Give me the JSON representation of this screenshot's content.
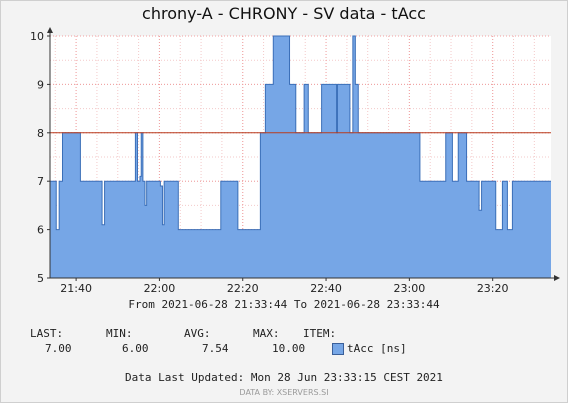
{
  "title": "chrony-A - CHRONY - SV data - tAcc",
  "time_range": "From 2021-06-28 21:33:44 To 2021-06-28 23:33:44",
  "stats": {
    "headers": [
      "LAST:",
      "MIN:",
      "AVG:",
      "MAX:",
      "ITEM:"
    ],
    "last": "7.00",
    "min": "6.00",
    "avg": "7.54",
    "max": "10.00",
    "item": "tAcc [ns]"
  },
  "updated": "Data Last Updated: Mon 28 Jun 23:33:15 CEST 2021",
  "credit": "DATA BY: XSERVERS.SI",
  "colors": {
    "fill": "#76a6e6",
    "line": "#3b6fb8",
    "threshold": "#b83b1e",
    "grid": "#f0a0a0"
  },
  "chart_data": {
    "type": "area",
    "title": "chrony-A - CHRONY - SV data - tAcc",
    "xlabel": "",
    "ylabel": "",
    "ylim": [
      5,
      10
    ],
    "xlim": [
      "21:33",
      "23:34"
    ],
    "x_ticks": [
      "21:40",
      "22:00",
      "22:20",
      "22:40",
      "23:00",
      "23:20"
    ],
    "y_ticks": [
      5,
      6,
      7,
      8,
      9,
      10
    ],
    "threshold": 8,
    "grid": true,
    "series": [
      {
        "name": "tAcc [ns]",
        "x_minutes": [
          0,
          1.5,
          2.2,
          3.0,
          6.5,
          7.3,
          12.0,
          12.5,
          13.1,
          20.0,
          20.5,
          21.0,
          21.6,
          21.9,
          22.3,
          22.8,
          23.2,
          26.5,
          27.0,
          27.4,
          30.0,
          30.8,
          34.0,
          40.0,
          40.6,
          41.0,
          44.5,
          45.1,
          50.0,
          50.5,
          51.3,
          51.7,
          53.6,
          57.5,
          58.0,
          59.0,
          61.0,
          62.0,
          64.4,
          65.2,
          65.8,
          66.2,
          66.8,
          68.8,
          69.0,
          69.5,
          70.0,
          72.0,
          72.7,
          73.3,
          74.0,
          79.0,
          80.0,
          81.0,
          83.0,
          84.5,
          86.0,
          88.0,
          88.8,
          89.5,
          90.0,
          95.0,
          96.0,
          96.6,
          98.0,
          100.0,
          101.3,
          102.1,
          103.0,
          103.6,
          104.3,
          104.7,
          105.4,
          106.1,
          107.0,
          108.6,
          109.3,
          109.8,
          111.0,
          112.5,
          113.0,
          113.5,
          114.5,
          117.0
        ],
        "y_values": [
          7,
          6,
          7,
          8,
          8,
          7,
          7,
          6.1,
          7,
          7,
          8,
          7,
          7.1,
          8,
          7,
          6.5,
          7,
          6.9,
          6.1,
          7,
          7,
          6,
          6,
          6,
          6,
          7,
          7,
          6,
          6,
          8,
          8,
          9,
          10,
          9,
          9,
          8,
          9,
          8,
          8,
          9,
          9,
          9,
          9,
          8,
          9,
          9,
          9,
          8,
          10,
          9,
          8,
          8,
          8,
          8,
          8,
          8,
          8,
          8,
          7,
          7,
          7,
          8,
          8,
          7,
          8,
          7,
          7,
          7,
          6.4,
          7,
          7,
          7,
          7,
          7,
          6,
          7,
          7,
          6,
          7,
          7,
          7,
          7,
          7,
          7
        ]
      }
    ]
  }
}
